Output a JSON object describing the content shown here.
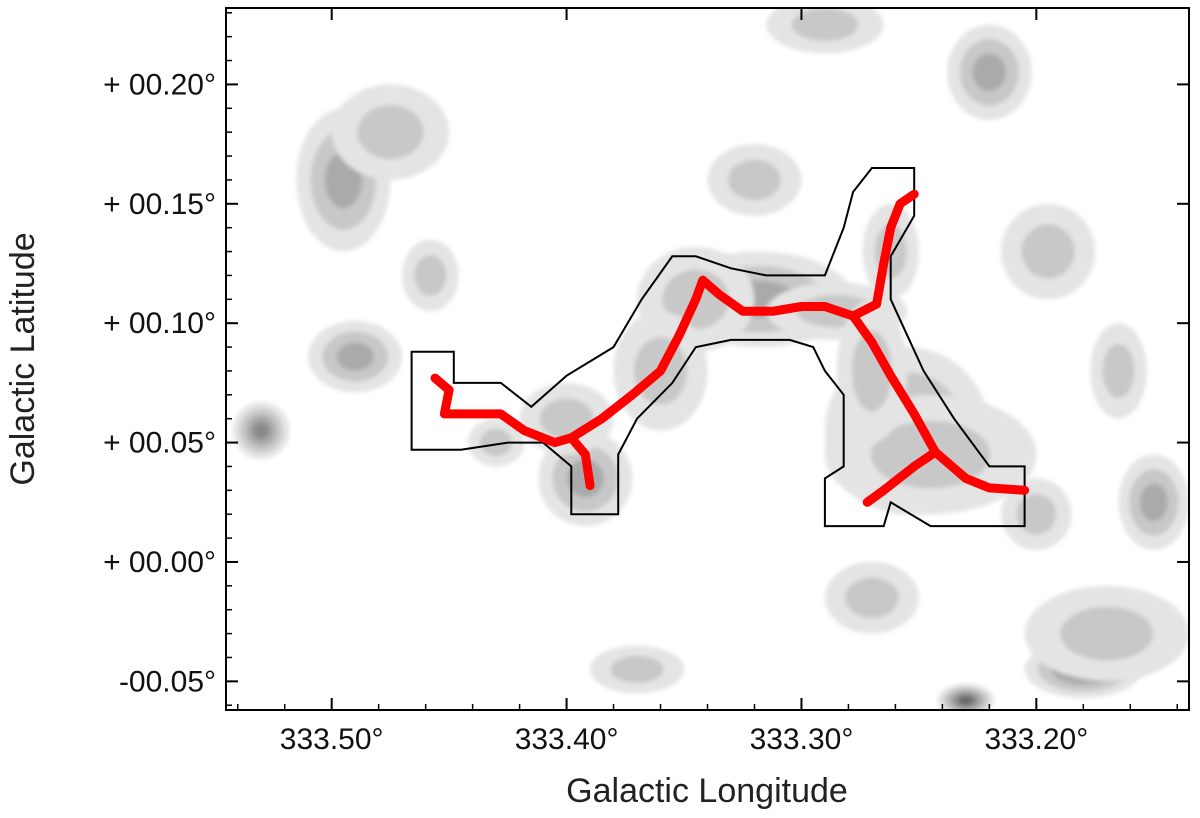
{
  "chart_data": {
    "type": "contour-map",
    "xlabel": "Galactic Longitude",
    "ylabel": "Galactic Latitude",
    "xlim": [
      333.545,
      333.135
    ],
    "ylim": [
      -0.062,
      0.232
    ],
    "x_axis_reversed": true,
    "x_ticks": [
      {
        "value": 333.5,
        "label": "333.50°"
      },
      {
        "value": 333.4,
        "label": "333.40°"
      },
      {
        "value": 333.3,
        "label": "333.30°"
      },
      {
        "value": 333.2,
        "label": "333.20°"
      }
    ],
    "y_ticks": [
      {
        "value": 0.2,
        "label": "+ 00.20°"
      },
      {
        "value": 0.15,
        "label": "+ 00.15°"
      },
      {
        "value": 0.1,
        "label": "+ 00.10°"
      },
      {
        "value": 0.05,
        "label": "+ 00.05°"
      },
      {
        "value": 0.0,
        "label": "+ 00.00°"
      },
      {
        "value": -0.05,
        "label": "-00.05°"
      }
    ],
    "grid": false,
    "colors": {
      "filament_spine": "#ff0000",
      "mask_outline": "#000000",
      "contour_levels": [
        "#e4e4e4",
        "#c8c8c8",
        "#aaaaaa",
        "#8a8a8a",
        "#666666",
        "#3a3a3a"
      ]
    },
    "contour_blobs": [
      {
        "l": 333.318,
        "b": 0.105,
        "rl": 0.018,
        "rb": 0.012,
        "level": 5
      },
      {
        "l": 333.318,
        "b": 0.11,
        "rl": 0.04,
        "rb": 0.02,
        "level": 2
      },
      {
        "l": 333.285,
        "b": 0.105,
        "rl": 0.03,
        "rb": 0.012,
        "level": 1
      },
      {
        "l": 333.345,
        "b": 0.11,
        "rl": 0.025,
        "rb": 0.022,
        "level": 1
      },
      {
        "l": 333.25,
        "b": 0.055,
        "rl": 0.02,
        "rb": 0.022,
        "level": 3
      },
      {
        "l": 333.255,
        "b": 0.055,
        "rl": 0.035,
        "rb": 0.035,
        "level": 2
      },
      {
        "l": 333.245,
        "b": 0.045,
        "rl": 0.045,
        "rb": 0.025,
        "level": 1
      },
      {
        "l": 333.27,
        "b": 0.08,
        "rl": 0.015,
        "rb": 0.03,
        "level": 1
      },
      {
        "l": 333.262,
        "b": 0.13,
        "rl": 0.012,
        "rb": 0.02,
        "level": 1
      },
      {
        "l": 333.39,
        "b": 0.03,
        "rl": 0.008,
        "rb": 0.008,
        "level": 4
      },
      {
        "l": 333.392,
        "b": 0.035,
        "rl": 0.02,
        "rb": 0.02,
        "level": 2
      },
      {
        "l": 333.36,
        "b": 0.08,
        "rl": 0.02,
        "rb": 0.025,
        "level": 1
      },
      {
        "l": 333.4,
        "b": 0.06,
        "rl": 0.02,
        "rb": 0.015,
        "level": 1
      },
      {
        "l": 333.49,
        "b": 0.084,
        "rl": 0.008,
        "rb": 0.006,
        "level": 4
      },
      {
        "l": 333.49,
        "b": 0.086,
        "rl": 0.02,
        "rb": 0.015,
        "level": 2
      },
      {
        "l": 333.495,
        "b": 0.16,
        "rl": 0.02,
        "rb": 0.03,
        "level": 2
      },
      {
        "l": 333.475,
        "b": 0.18,
        "rl": 0.025,
        "rb": 0.02,
        "level": 1
      },
      {
        "l": 333.53,
        "b": 0.055,
        "rl": 0.012,
        "rb": 0.012,
        "level": 3
      },
      {
        "l": 333.458,
        "b": 0.12,
        "rl": 0.012,
        "rb": 0.015,
        "level": 1
      },
      {
        "l": 333.22,
        "b": 0.205,
        "rl": 0.018,
        "rb": 0.02,
        "level": 2
      },
      {
        "l": 333.29,
        "b": 0.225,
        "rl": 0.025,
        "rb": 0.012,
        "level": 1
      },
      {
        "l": 333.195,
        "b": 0.13,
        "rl": 0.02,
        "rb": 0.02,
        "level": 1
      },
      {
        "l": 333.165,
        "b": 0.08,
        "rl": 0.012,
        "rb": 0.02,
        "level": 1
      },
      {
        "l": 333.18,
        "b": -0.045,
        "rl": 0.025,
        "rb": 0.012,
        "level": 3
      },
      {
        "l": 333.17,
        "b": -0.03,
        "rl": 0.035,
        "rb": 0.02,
        "level": 1
      },
      {
        "l": 333.27,
        "b": -0.015,
        "rl": 0.02,
        "rb": 0.015,
        "level": 1
      },
      {
        "l": 333.23,
        "b": -0.058,
        "rl": 0.012,
        "rb": 0.007,
        "level": 4
      },
      {
        "l": 333.2,
        "b": 0.02,
        "rl": 0.015,
        "rb": 0.015,
        "level": 1
      },
      {
        "l": 333.15,
        "b": 0.025,
        "rl": 0.015,
        "rb": 0.02,
        "level": 2
      },
      {
        "l": 333.37,
        "b": -0.045,
        "rl": 0.02,
        "rb": 0.01,
        "level": 1
      },
      {
        "l": 333.43,
        "b": 0.05,
        "rl": 0.012,
        "rb": 0.01,
        "level": 1
      },
      {
        "l": 333.32,
        "b": 0.16,
        "rl": 0.02,
        "rb": 0.015,
        "level": 1
      }
    ],
    "mask_outline": [
      [
        333.466,
        0.088
      ],
      [
        333.448,
        0.088
      ],
      [
        333.448,
        0.075
      ],
      [
        333.428,
        0.075
      ],
      [
        333.415,
        0.065
      ],
      [
        333.4,
        0.078
      ],
      [
        333.38,
        0.09
      ],
      [
        333.368,
        0.11
      ],
      [
        333.355,
        0.128
      ],
      [
        333.345,
        0.128
      ],
      [
        333.33,
        0.123
      ],
      [
        333.315,
        0.12
      ],
      [
        333.3,
        0.12
      ],
      [
        333.29,
        0.12
      ],
      [
        333.282,
        0.14
      ],
      [
        333.278,
        0.155
      ],
      [
        333.27,
        0.165
      ],
      [
        333.252,
        0.165
      ],
      [
        333.252,
        0.145
      ],
      [
        333.262,
        0.128
      ],
      [
        333.262,
        0.11
      ],
      [
        333.255,
        0.095
      ],
      [
        333.248,
        0.08
      ],
      [
        333.235,
        0.06
      ],
      [
        333.22,
        0.04
      ],
      [
        333.205,
        0.04
      ],
      [
        333.205,
        0.015
      ],
      [
        333.245,
        0.015
      ],
      [
        333.262,
        0.025
      ],
      [
        333.265,
        0.015
      ],
      [
        333.29,
        0.015
      ],
      [
        333.29,
        0.035
      ],
      [
        333.282,
        0.04
      ],
      [
        333.282,
        0.07
      ],
      [
        333.29,
        0.08
      ],
      [
        333.295,
        0.09
      ],
      [
        333.305,
        0.093
      ],
      [
        333.33,
        0.093
      ],
      [
        333.345,
        0.09
      ],
      [
        333.355,
        0.075
      ],
      [
        333.37,
        0.06
      ],
      [
        333.378,
        0.045
      ],
      [
        333.378,
        0.02
      ],
      [
        333.398,
        0.02
      ],
      [
        333.398,
        0.04
      ],
      [
        333.41,
        0.05
      ],
      [
        333.425,
        0.05
      ],
      [
        333.445,
        0.047
      ],
      [
        333.466,
        0.047
      ],
      [
        333.466,
        0.088
      ]
    ],
    "filament_spines": [
      [
        [
          333.456,
          0.077
        ],
        [
          333.45,
          0.072
        ],
        [
          333.452,
          0.062
        ],
        [
          333.44,
          0.062
        ],
        [
          333.428,
          0.062
        ],
        [
          333.418,
          0.055
        ],
        [
          333.405,
          0.05
        ],
        [
          333.398,
          0.052
        ],
        [
          333.385,
          0.06
        ],
        [
          333.372,
          0.07
        ],
        [
          333.36,
          0.08
        ],
        [
          333.352,
          0.095
        ],
        [
          333.345,
          0.11
        ],
        [
          333.342,
          0.118
        ],
        [
          333.335,
          0.112
        ],
        [
          333.325,
          0.105
        ],
        [
          333.312,
          0.105
        ],
        [
          333.3,
          0.107
        ],
        [
          333.29,
          0.107
        ],
        [
          333.278,
          0.103
        ],
        [
          333.27,
          0.092
        ],
        [
          333.262,
          0.078
        ],
        [
          333.252,
          0.062
        ],
        [
          333.243,
          0.046
        ],
        [
          333.23,
          0.035
        ],
        [
          333.22,
          0.031
        ],
        [
          333.205,
          0.03
        ]
      ],
      [
        [
          333.398,
          0.052
        ],
        [
          333.392,
          0.045
        ],
        [
          333.39,
          0.032
        ]
      ],
      [
        [
          333.278,
          0.103
        ],
        [
          333.268,
          0.108
        ],
        [
          333.265,
          0.125
        ],
        [
          333.262,
          0.14
        ],
        [
          333.258,
          0.15
        ],
        [
          333.252,
          0.154
        ]
      ],
      [
        [
          333.243,
          0.046
        ],
        [
          333.252,
          0.04
        ],
        [
          333.265,
          0.03
        ],
        [
          333.272,
          0.025
        ]
      ]
    ]
  }
}
